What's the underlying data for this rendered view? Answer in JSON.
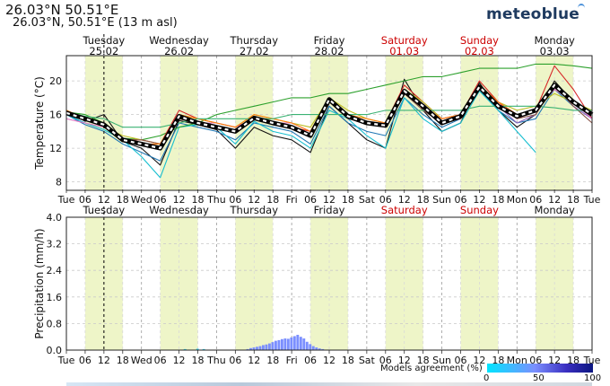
{
  "header": {
    "title": "26.03°N 50.51°E",
    "subtitle": "26.03°N, 50.51°E (13 m asl)",
    "brand": "meteoblue"
  },
  "days": [
    {
      "name": "Tuesday",
      "date": "25.02",
      "weekend": false,
      "short": "Tue"
    },
    {
      "name": "Wednesday",
      "date": "26.02",
      "weekend": false,
      "short": "Wed"
    },
    {
      "name": "Thursday",
      "date": "27.02",
      "weekend": false,
      "short": "Thu"
    },
    {
      "name": "Friday",
      "date": "28.02",
      "weekend": false,
      "short": "Fri"
    },
    {
      "name": "Saturday",
      "date": "01.03",
      "weekend": true,
      "short": "Sat"
    },
    {
      "name": "Sunday",
      "date": "02.03",
      "weekend": true,
      "short": "Sun"
    },
    {
      "name": "Monday",
      "date": "03.03",
      "weekend": false,
      "short": "Mon"
    }
  ],
  "end_tick_label": "Tue",
  "hour_ticks": [
    "06",
    "12",
    "18"
  ],
  "colors": {
    "weekend": "#cc0000",
    "daylight": "#eef5c8",
    "mean_line": "#000000"
  },
  "legend": {
    "label": "Models agreement (%)",
    "ticks": [
      "0",
      "50",
      "100"
    ]
  },
  "chart_data": [
    {
      "type": "line",
      "title": "",
      "ylabel": "Temperature (°C)",
      "ylim": [
        7,
        23
      ],
      "yticks": [
        8,
        12,
        16,
        20
      ],
      "xlim": [
        0,
        168
      ],
      "now_hour": 12,
      "mean": {
        "x": [
          0,
          6,
          12,
          18,
          24,
          30,
          36,
          42,
          48,
          54,
          60,
          66,
          72,
          78,
          84,
          90,
          96,
          102,
          108,
          114,
          120,
          126,
          132,
          138,
          144,
          150,
          156,
          162,
          168
        ],
        "y": [
          16.2,
          15.5,
          14.8,
          13.0,
          12.5,
          12.0,
          15.8,
          15.0,
          14.5,
          14.0,
          15.6,
          15.0,
          14.5,
          13.5,
          17.8,
          15.8,
          15.0,
          14.7,
          18.8,
          17.0,
          15.0,
          15.8,
          19.3,
          17.0,
          15.8,
          16.5,
          19.5,
          17.5,
          16.0
        ]
      },
      "series": [
        {
          "name": "model-1",
          "color": "#111111",
          "values": [
            16.5,
            15.2,
            16.0,
            12.8,
            12.0,
            10.0,
            15.3,
            14.8,
            14.2,
            12.0,
            14.5,
            13.5,
            13.0,
            11.5,
            17.0,
            15.0,
            13.0,
            12.0,
            20.2,
            16.5,
            14.0,
            15.0,
            19.8,
            16.5,
            14.5,
            16.0,
            20.0,
            17.5,
            16.0
          ]
        },
        {
          "name": "model-2",
          "color": "#1f77b4",
          "values": [
            16.0,
            14.8,
            14.0,
            12.5,
            11.5,
            10.5,
            15.0,
            14.5,
            14.0,
            13.0,
            15.0,
            14.5,
            14.0,
            12.5,
            17.0,
            15.0,
            14.0,
            13.5,
            18.0,
            16.0,
            14.5,
            15.5,
            19.0,
            16.5,
            15.0,
            15.5,
            19.0,
            17.0,
            15.5
          ]
        },
        {
          "name": "model-3",
          "color": "#17becf",
          "values": [
            16.0,
            15.0,
            14.2,
            13.0,
            11.0,
            8.5,
            14.5,
            14.8,
            14.5,
            12.5,
            15.2,
            14.0,
            13.5,
            12.0,
            16.5,
            15.5,
            13.5,
            12.0,
            18.0,
            15.5,
            14.0,
            15.0,
            18.8,
            16.5,
            14.0,
            11.5,
            null,
            null,
            null
          ]
        },
        {
          "name": "model-4",
          "color": "#2ca02c",
          "values": [
            16.3,
            16.0,
            15.0,
            13.2,
            13.0,
            13.5,
            14.5,
            15.0,
            16.0,
            16.5,
            17.0,
            17.5,
            18.0,
            18.0,
            18.5,
            18.5,
            19.0,
            19.5,
            20.0,
            20.5,
            20.5,
            21.0,
            21.5,
            21.5,
            21.5,
            22.0,
            22.0,
            21.8,
            21.5
          ]
        },
        {
          "name": "model-5",
          "color": "#d62728",
          "values": [
            16.5,
            15.5,
            15.0,
            13.0,
            13.0,
            12.5,
            16.5,
            15.5,
            15.0,
            14.5,
            15.5,
            15.0,
            14.5,
            14.0,
            18.0,
            16.0,
            15.0,
            15.0,
            19.5,
            17.5,
            15.5,
            16.0,
            20.0,
            17.5,
            15.5,
            16.5,
            21.8,
            19.0,
            15.5
          ]
        },
        {
          "name": "model-6",
          "color": "#9467bd",
          "values": [
            16.0,
            15.5,
            14.5,
            13.0,
            12.5,
            12.0,
            15.5,
            15.0,
            14.5,
            14.0,
            15.5,
            15.0,
            14.5,
            13.5,
            17.5,
            16.0,
            15.0,
            14.5,
            19.0,
            17.0,
            15.0,
            15.5,
            19.5,
            17.0,
            15.0,
            16.0,
            19.5,
            17.0,
            15.5
          ]
        },
        {
          "name": "model-7",
          "color": "#bcbd22",
          "values": [
            16.5,
            15.5,
            14.5,
            13.5,
            13.0,
            12.5,
            16.0,
            15.5,
            15.0,
            14.5,
            16.0,
            15.5,
            15.0,
            14.5,
            18.0,
            16.5,
            15.5,
            15.0,
            19.0,
            17.5,
            15.5,
            16.0,
            19.0,
            17.5,
            16.5,
            17.0,
            18.5,
            17.5,
            16.5
          ]
        },
        {
          "name": "model-8",
          "color": "#e377c2",
          "values": [
            15.5,
            15.0,
            14.5,
            13.0,
            12.5,
            12.0,
            15.5,
            15.0,
            15.0,
            14.5,
            15.5,
            15.0,
            15.0,
            14.0,
            17.5,
            16.0,
            15.0,
            15.0,
            18.5,
            17.0,
            15.5,
            16.0,
            19.0,
            17.5,
            16.0,
            16.5,
            19.0,
            17.5,
            15.5
          ]
        },
        {
          "name": "model-9",
          "color": "#8c564b",
          "values": [
            16.0,
            15.5,
            15.0,
            13.0,
            13.0,
            12.5,
            15.5,
            15.0,
            14.5,
            14.0,
            15.5,
            15.0,
            14.5,
            13.5,
            17.5,
            15.5,
            15.0,
            14.5,
            18.5,
            16.5,
            15.0,
            15.5,
            19.0,
            17.0,
            15.5,
            16.0,
            19.5,
            17.0,
            15.0
          ]
        },
        {
          "name": "model-10",
          "color": "#ff7f0e",
          "values": [
            16.5,
            15.5,
            15.0,
            13.0,
            12.5,
            12.5,
            16.0,
            15.5,
            15.0,
            14.5,
            16.0,
            15.5,
            15.0,
            14.0,
            18.0,
            16.0,
            15.5,
            15.0,
            19.0,
            17.0,
            15.5,
            16.0,
            19.5,
            17.5,
            16.0,
            16.5,
            19.5,
            17.5,
            16.0
          ]
        },
        {
          "name": "model-11",
          "color": "#3bb273",
          "values": [
            16.3,
            15.8,
            15.5,
            14.5,
            14.5,
            14.5,
            15.0,
            15.5,
            15.5,
            15.5,
            15.5,
            15.5,
            16.0,
            16.0,
            16.0,
            16.0,
            16.0,
            16.5,
            16.5,
            16.5,
            16.5,
            16.5,
            17.0,
            17.0,
            17.0,
            17.0,
            16.8,
            16.5,
            16.5
          ]
        }
      ]
    },
    {
      "type": "bar",
      "title": "",
      "ylabel": "Precipitation (mm/h)",
      "ylim": [
        0,
        4.0
      ],
      "yticks": [
        0.0,
        0.8,
        1.6,
        2.4,
        3.2,
        4.0
      ],
      "xlim": [
        0,
        168
      ],
      "bar_width_hours": 1,
      "x": [
        38,
        42,
        44,
        58,
        59,
        60,
        61,
        62,
        63,
        64,
        65,
        66,
        67,
        68,
        69,
        70,
        71,
        72,
        73,
        74,
        75,
        76,
        77,
        78,
        79,
        80,
        81,
        82
      ],
      "values": [
        0.03,
        0.04,
        0.03,
        0.03,
        0.06,
        0.08,
        0.1,
        0.12,
        0.15,
        0.17,
        0.2,
        0.24,
        0.28,
        0.3,
        0.33,
        0.35,
        0.34,
        0.38,
        0.42,
        0.46,
        0.4,
        0.35,
        0.25,
        0.18,
        0.12,
        0.08,
        0.05,
        0.03
      ],
      "agreement": [
        30,
        30,
        30,
        60,
        60,
        60,
        60,
        60,
        60,
        60,
        60,
        60,
        60,
        60,
        60,
        60,
        60,
        60,
        60,
        60,
        60,
        60,
        60,
        60,
        60,
        60,
        60,
        60
      ]
    }
  ]
}
